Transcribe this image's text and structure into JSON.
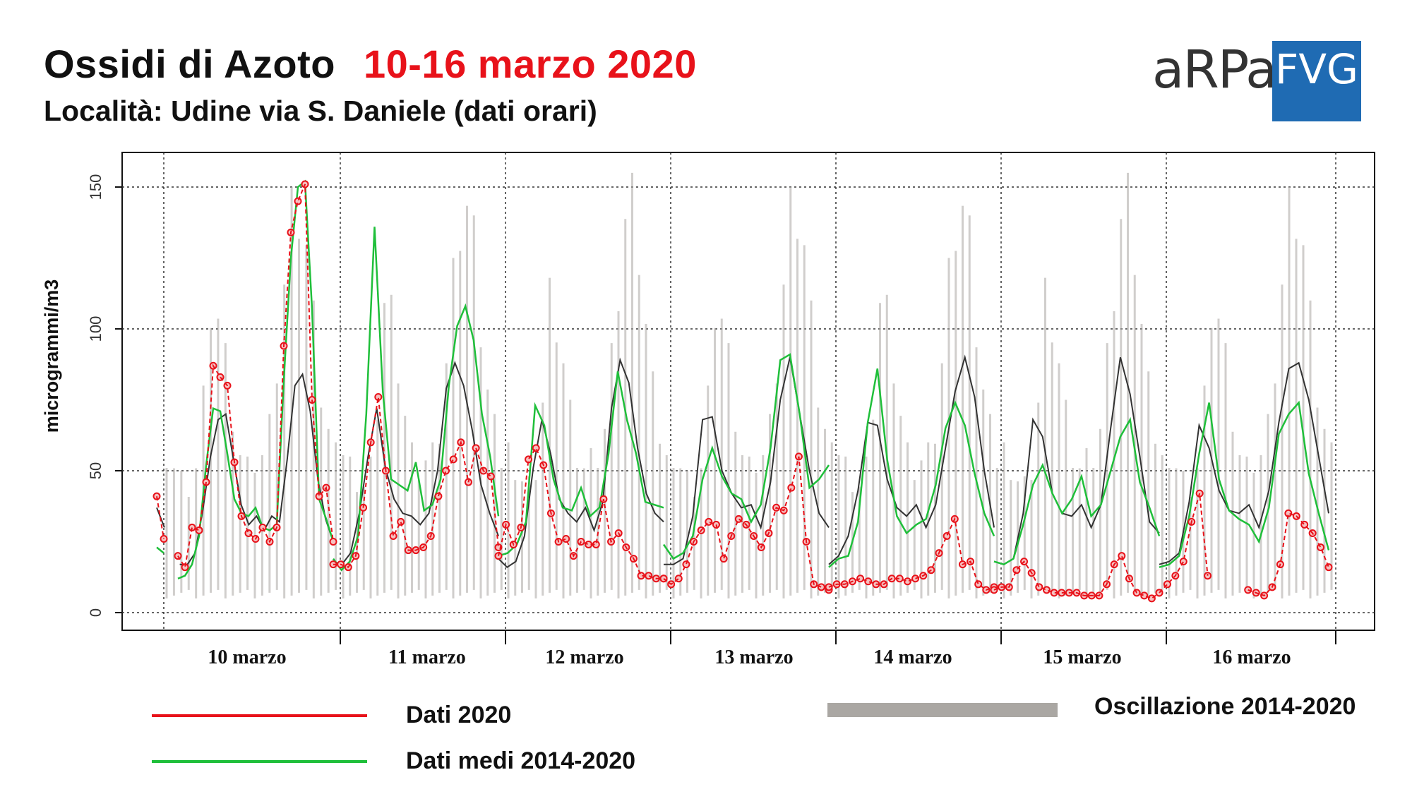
{
  "header": {
    "title_main": "Ossidi di Azoto",
    "title_dates": "10-16 marzo 2020",
    "subtitle": "Località:  Udine via S. Daniele (dati orari)"
  },
  "logo": {
    "left_text": "aRPa",
    "right_text": "FVG"
  },
  "colors": {
    "title_dates": "#e8121a",
    "series_2020": "#e8121a",
    "series_mean": "#1fbf3a",
    "series_dark": "#333333",
    "range_band": "#aaa7a3",
    "logo_box": "#1f6bb3"
  },
  "legend": {
    "red_label": "Dati 2020",
    "green_label": "Dati medi 2014-2020",
    "gray_label": "Oscillazione 2014-2020"
  },
  "chart_data": {
    "type": "line",
    "ylabel": "microgrammi/m3",
    "ylim": [
      0,
      160
    ],
    "yticks": [
      0,
      50,
      100,
      150
    ],
    "grid": true,
    "x_unit": "hour",
    "day_labels": [
      "10 marzo",
      "11 marzo",
      "12 marzo",
      "13 marzo",
      "14 marzo",
      "15 marzo",
      "16 marzo"
    ],
    "hours_per_day": 24,
    "series": [
      {
        "name": "Dati 2020",
        "style": "points_dashed",
        "values": [
          [
            41,
            26,
            null,
            20,
            16,
            30,
            29,
            46,
            87,
            83,
            80,
            53,
            34,
            28,
            26,
            30,
            25,
            30,
            94,
            134,
            145,
            151,
            75,
            41,
            44,
            25
          ],
          [
            17,
            17,
            16,
            20,
            37,
            60,
            76,
            50,
            27,
            32,
            22,
            22,
            23,
            27,
            41,
            50,
            54,
            60,
            46,
            58,
            50,
            48,
            23
          ],
          [
            20,
            31,
            24,
            30,
            54,
            58,
            52,
            35,
            25,
            26,
            20,
            25,
            24,
            24,
            40,
            25,
            28,
            23,
            19,
            13,
            13,
            12,
            12
          ],
          [
            12,
            10,
            12,
            17,
            25,
            29,
            32,
            31,
            19,
            27,
            33,
            31,
            27,
            23,
            28,
            37,
            36,
            44,
            55,
            25,
            10,
            9,
            8
          ],
          [
            9,
            10,
            10,
            11,
            12,
            11,
            10,
            10,
            12,
            12,
            11,
            12,
            13,
            15,
            21,
            27,
            33,
            17,
            18,
            10,
            8,
            9
          ],
          [
            8,
            9,
            9,
            15,
            18,
            14,
            9,
            8,
            7,
            7,
            7,
            7,
            6,
            6,
            6,
            10,
            17,
            20,
            12,
            7,
            6,
            5,
            7
          ],
          [
            7,
            10,
            13,
            18,
            32,
            42,
            13,
            null,
            null,
            null,
            null,
            8,
            7,
            6,
            9,
            17,
            35,
            34,
            31,
            28,
            23,
            16
          ]
        ]
      },
      {
        "name": "Dati medi 2014-2020",
        "style": "line",
        "values": [
          [
            23,
            21,
            null,
            12,
            13,
            17,
            27,
            52,
            72,
            71,
            56,
            40,
            35,
            34,
            37,
            30,
            29,
            31,
            82,
            125,
            150,
            152,
            107,
            40,
            33,
            25
          ],
          [
            19,
            15,
            18,
            27,
            70,
            136,
            78,
            47,
            45,
            43,
            53,
            36,
            38,
            47,
            80,
            101,
            108,
            96,
            70,
            55,
            34
          ],
          [
            20,
            21,
            24,
            32,
            73,
            66,
            47,
            37,
            36,
            44,
            34,
            37,
            56,
            85,
            68,
            56,
            39,
            38,
            37
          ],
          [
            24,
            19,
            21,
            27,
            47,
            58,
            48,
            42,
            40,
            32,
            38,
            58,
            89,
            91,
            70,
            44,
            47,
            52
          ],
          [
            16,
            19,
            20,
            32,
            67,
            86,
            54,
            34,
            28,
            31,
            33,
            45,
            65,
            74,
            66,
            49,
            35,
            27
          ],
          [
            18,
            17,
            19,
            31,
            45,
            52,
            42,
            35,
            40,
            48,
            34,
            38,
            50,
            62,
            68,
            46,
            37,
            27
          ],
          [
            16,
            17,
            20,
            34,
            56,
            74,
            47,
            36,
            33,
            31,
            25,
            37,
            63,
            70,
            74,
            49,
            35,
            22
          ]
        ]
      },
      {
        "name": "",
        "style": "line_dark",
        "values": [
          [
            37,
            30,
            null,
            17,
            17,
            21,
            36,
            55,
            68,
            70,
            54,
            38,
            31,
            34,
            29,
            34,
            32,
            54,
            80,
            84,
            71,
            47,
            33,
            25
          ],
          [
            18,
            17,
            21,
            35,
            55,
            72,
            51,
            40,
            35,
            34,
            31,
            35,
            50,
            79,
            88,
            80,
            64,
            45,
            35,
            27
          ],
          [
            19,
            16,
            18,
            27,
            51,
            68,
            56,
            40,
            35,
            32,
            37,
            29,
            39,
            72,
            89,
            81,
            58,
            42,
            35,
            32
          ],
          [
            17,
            17,
            19,
            34,
            68,
            69,
            50,
            42,
            37,
            38,
            30,
            46,
            75,
            90,
            70,
            50,
            35,
            30
          ],
          [
            17,
            20,
            27,
            43,
            67,
            66,
            47,
            37,
            34,
            38,
            30,
            38,
            58,
            78,
            90,
            76,
            50,
            30
          ],
          [
            18,
            17,
            19,
            35,
            68,
            62,
            42,
            35,
            34,
            38,
            30,
            38,
            65,
            90,
            77,
            55,
            32,
            28
          ],
          [
            17,
            18,
            21,
            39,
            66,
            58,
            43,
            36,
            35,
            38,
            30,
            43,
            67,
            86,
            88,
            75,
            55,
            35
          ]
        ]
      }
    ],
    "range_band": {
      "name": "Oscillazione 2014-2020",
      "min": 5,
      "max": 157
    }
  }
}
